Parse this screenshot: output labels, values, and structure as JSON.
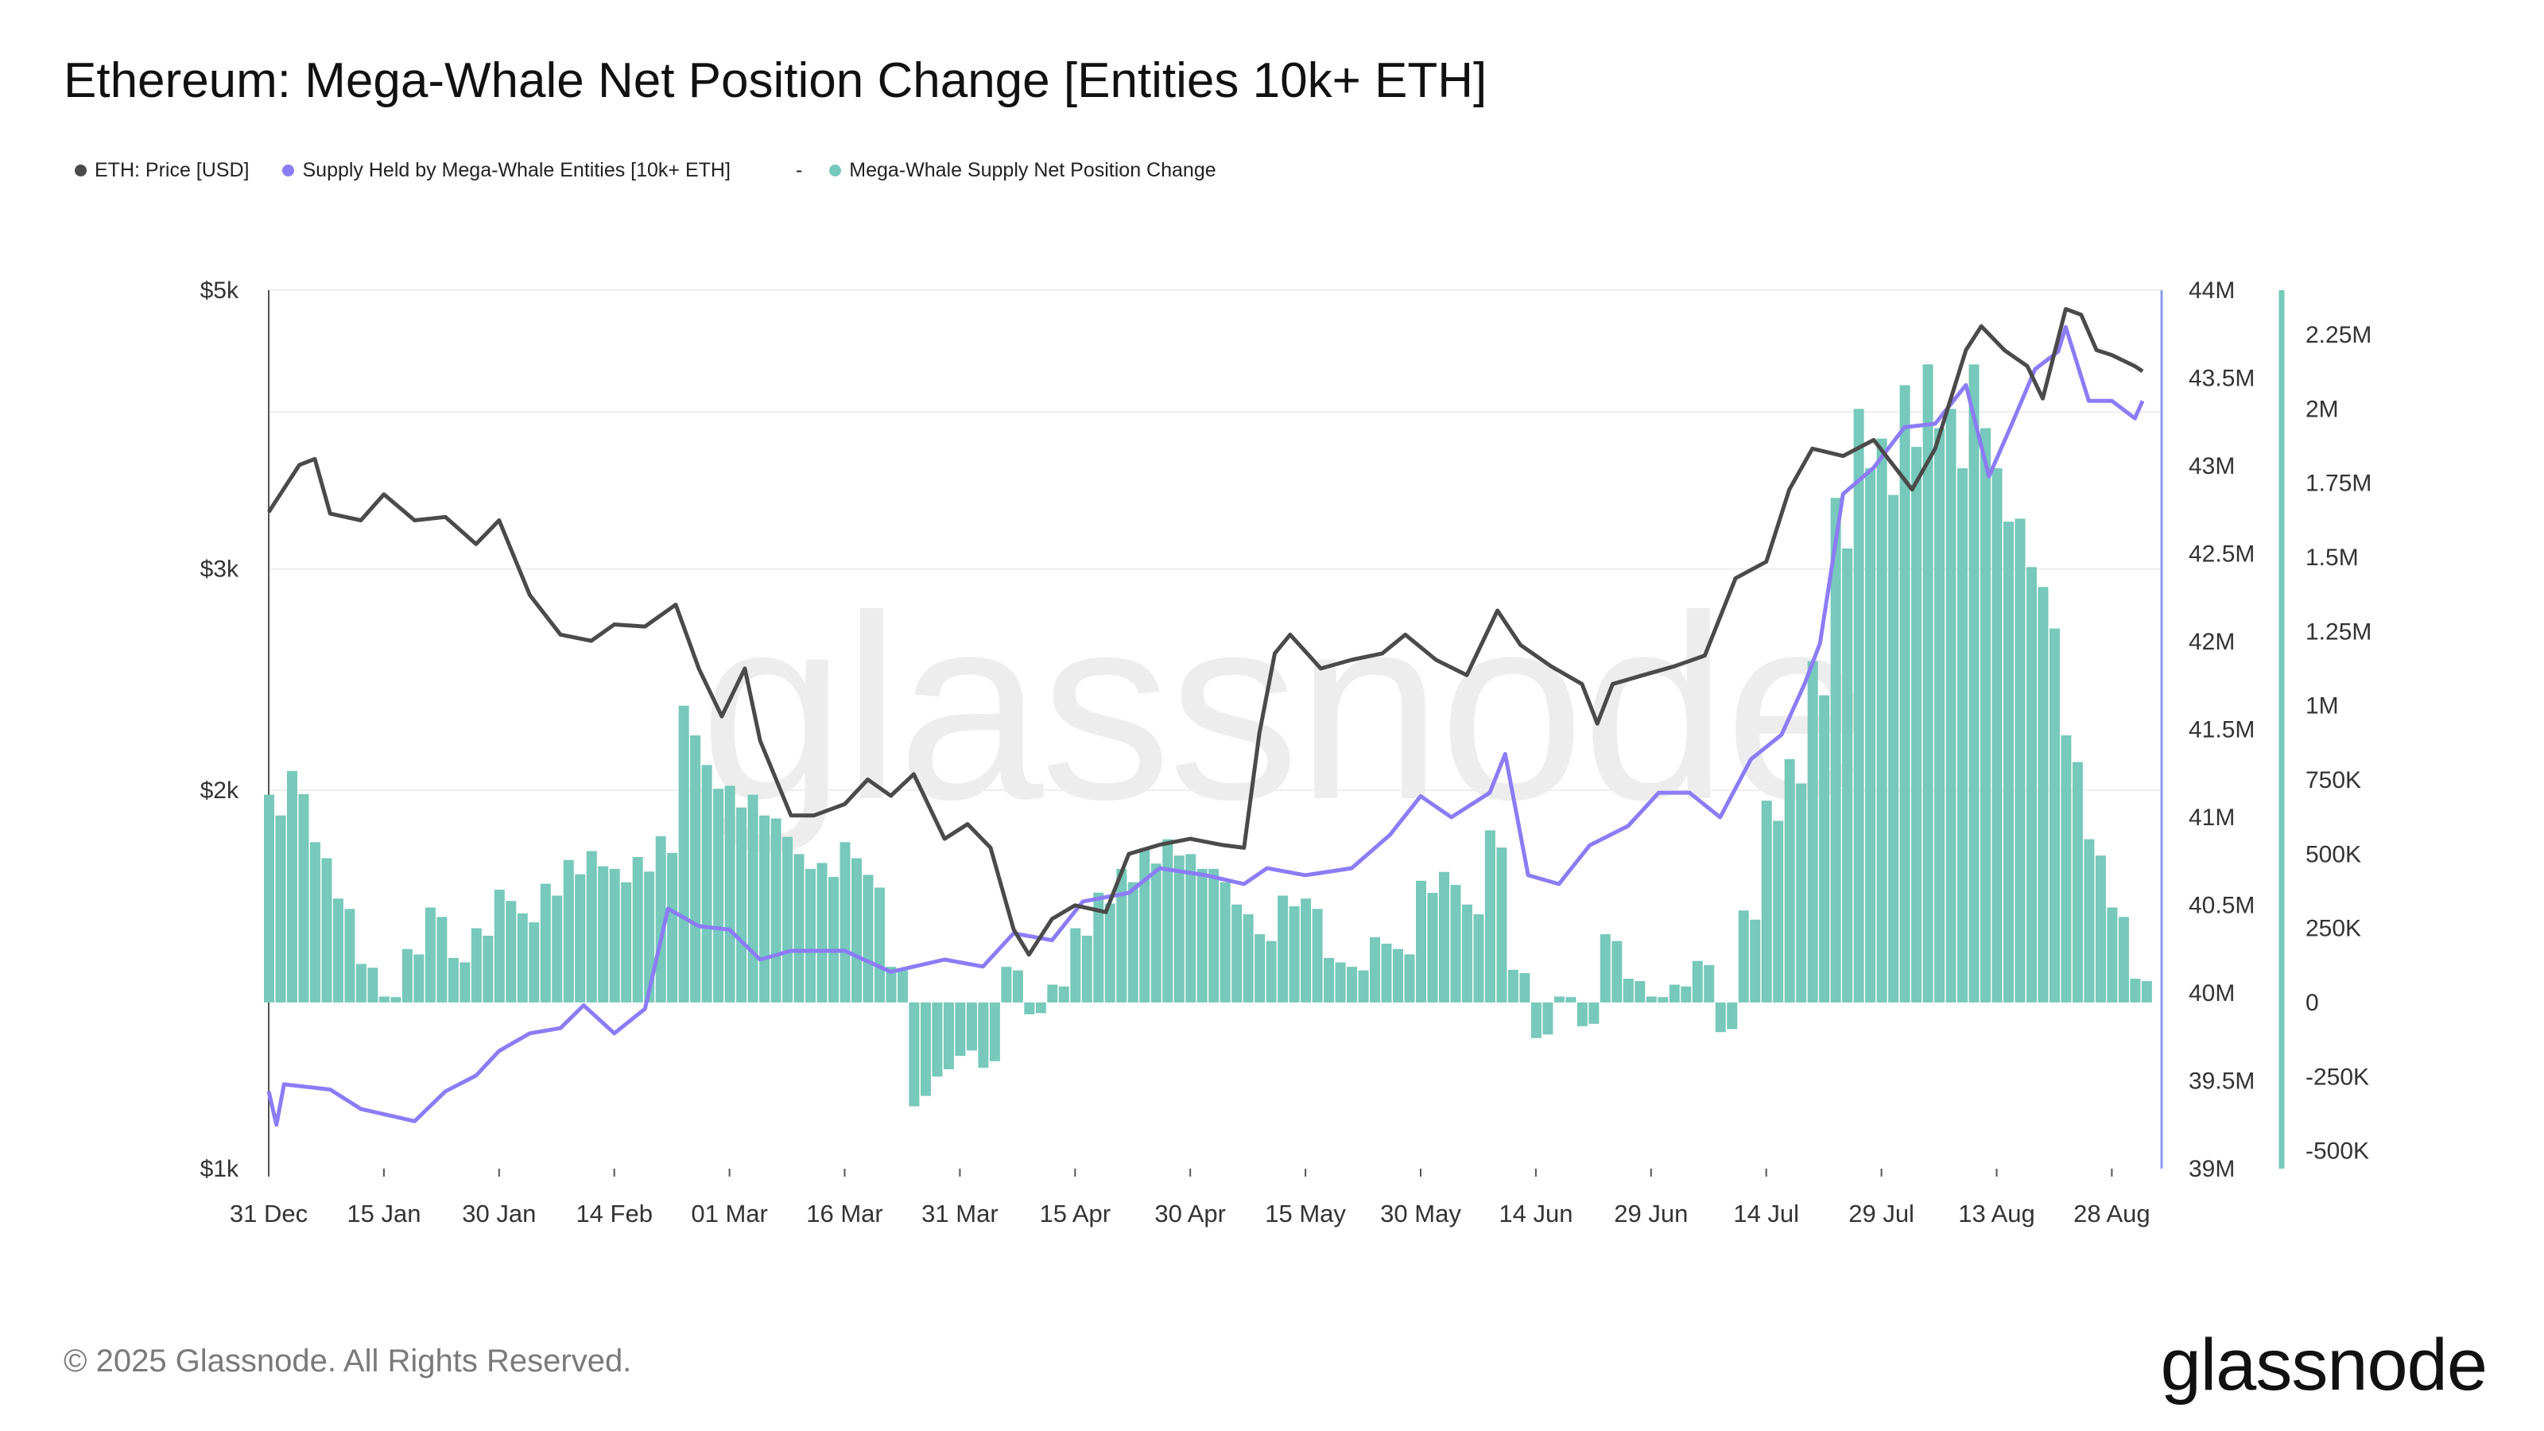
{
  "title": "Ethereum: Mega-Whale Net Position Change [Entities 10k+ ETH]",
  "legend": [
    {
      "label": "ETH: Price [USD]",
      "color": "#4a4a4a"
    },
    {
      "label": "Supply Held by Mega-Whale Entities [10k+ ETH]",
      "color": "#8b7cf6"
    },
    {
      "label": "Mega-Whale Supply Net Position Change",
      "color": "#76c9bb"
    }
  ],
  "legend_separator": "-",
  "footer": {
    "copyright": "© 2025 Glassnode. All Rights Reserved.",
    "logo": "glassnode"
  },
  "watermark": "glassnode",
  "chart_data": {
    "type": "line+bar",
    "title": "Ethereum: Mega-Whale Net Position Change [Entities 10k+ ETH]",
    "x_ticks": [
      "31 Dec",
      "15 Jan",
      "30 Jan",
      "14 Feb",
      "01 Mar",
      "16 Mar",
      "31 Mar",
      "15 Apr",
      "30 Apr",
      "15 May",
      "30 May",
      "14 Jun",
      "29 Jun",
      "14 Jul",
      "29 Jul",
      "13 Aug",
      "28 Aug"
    ],
    "y_left": {
      "scale": "log",
      "range": [
        1000,
        5000
      ],
      "ticks": [
        {
          "v": 5000,
          "label": "$5k"
        },
        {
          "v": 3000,
          "label": "$3k"
        },
        {
          "v": 2000,
          "label": "$2k"
        },
        {
          "v": 1000,
          "label": "$1k"
        }
      ],
      "grid": [
        5000,
        4000,
        3000,
        2000
      ]
    },
    "y_right_supply": {
      "scale": "linear",
      "range": [
        39000000,
        44000000
      ],
      "ticks": [
        "44M",
        "43.5M",
        "43M",
        "42.5M",
        "42M",
        "41.5M",
        "41M",
        "40.5M",
        "40M",
        "39.5M",
        "39M"
      ]
    },
    "y_right_change": {
      "scale": "linear",
      "range": [
        -560000,
        2400000
      ],
      "ticks": [
        {
          "v": 2250000,
          "label": "2.25M"
        },
        {
          "v": 2000000,
          "label": "2M"
        },
        {
          "v": 1750000,
          "label": "1.75M"
        },
        {
          "v": 1500000,
          "label": "1.5M"
        },
        {
          "v": 1250000,
          "label": "1.25M"
        },
        {
          "v": 1000000,
          "label": "1M"
        },
        {
          "v": 750000,
          "label": "750K"
        },
        {
          "v": 500000,
          "label": "500K"
        },
        {
          "v": 250000,
          "label": "250K"
        },
        {
          "v": 0,
          "label": "0"
        },
        {
          "v": -250000,
          "label": "-250K"
        },
        {
          "v": -500000,
          "label": "-500K"
        }
      ]
    },
    "series": [
      {
        "name": "ETH: Price [USD]",
        "type": "line",
        "axis": "left",
        "color": "#4a4a4a",
        "points": [
          [
            "Dec 31",
            3330
          ],
          [
            "Jan 4",
            3630
          ],
          [
            "Jan 6",
            3670
          ],
          [
            "Jan 8",
            3320
          ],
          [
            "Jan 12",
            3280
          ],
          [
            "Jan 15",
            3440
          ],
          [
            "Jan 19",
            3280
          ],
          [
            "Jan 23",
            3300
          ],
          [
            "Jan 27",
            3140
          ],
          [
            "Jan 30",
            3280
          ],
          [
            "Feb 3",
            2860
          ],
          [
            "Feb 7",
            2660
          ],
          [
            "Feb 11",
            2630
          ],
          [
            "Feb 14",
            2710
          ],
          [
            "Feb 18",
            2700
          ],
          [
            "Feb 22",
            2810
          ],
          [
            "Feb 25",
            2500
          ],
          [
            "Feb 28",
            2290
          ],
          [
            "Mar 3",
            2500
          ],
          [
            "Mar 5",
            2190
          ],
          [
            "Mar 9",
            1910
          ],
          [
            "Mar 12",
            1910
          ],
          [
            "Mar 16",
            1950
          ],
          [
            "Mar 19",
            2040
          ],
          [
            "Mar 22",
            1980
          ],
          [
            "Mar 25",
            2060
          ],
          [
            "Mar 29",
            1830
          ],
          [
            "Apr 1",
            1880
          ],
          [
            "Apr 4",
            1800
          ],
          [
            "Apr 7",
            1550
          ],
          [
            "Apr 9",
            1480
          ],
          [
            "Apr 12",
            1580
          ],
          [
            "Apr 15",
            1620
          ],
          [
            "Apr 19",
            1600
          ],
          [
            "Apr 22",
            1780
          ],
          [
            "Apr 26",
            1810
          ],
          [
            "Apr 30",
            1830
          ],
          [
            "May 4",
            1810
          ],
          [
            "May 7",
            1800
          ],
          [
            "May 9",
            2220
          ],
          [
            "May 11",
            2570
          ],
          [
            "May 13",
            2660
          ],
          [
            "May 17",
            2500
          ],
          [
            "May 21",
            2540
          ],
          [
            "May 25",
            2570
          ],
          [
            "May 28",
            2660
          ],
          [
            "Jun 1",
            2540
          ],
          [
            "Jun 5",
            2470
          ],
          [
            "Jun 9",
            2780
          ],
          [
            "Jun 12",
            2610
          ],
          [
            "Jun 16",
            2510
          ],
          [
            "Jun 20",
            2430
          ],
          [
            "Jun 22",
            2260
          ],
          [
            "Jun 24",
            2430
          ],
          [
            "Jun 28",
            2470
          ],
          [
            "Jul 2",
            2510
          ],
          [
            "Jul 6",
            2560
          ],
          [
            "Jul 10",
            2950
          ],
          [
            "Jul 14",
            3040
          ],
          [
            "Jul 17",
            3470
          ],
          [
            "Jul 20",
            3740
          ],
          [
            "Jul 24",
            3690
          ],
          [
            "Jul 28",
            3800
          ],
          [
            "Aug 2",
            3470
          ],
          [
            "Aug 5",
            3740
          ],
          [
            "Aug 9",
            4480
          ],
          [
            "Aug 11",
            4680
          ],
          [
            "Aug 14",
            4480
          ],
          [
            "Aug 17",
            4350
          ],
          [
            "Aug 19",
            4100
          ],
          [
            "Aug 22",
            4830
          ],
          [
            "Aug 24",
            4780
          ],
          [
            "Aug 26",
            4480
          ],
          [
            "Aug 28",
            4440
          ],
          [
            "Aug 31",
            4350
          ],
          [
            "Sep 1",
            4310
          ]
        ]
      },
      {
        "name": "Supply Held by Mega-Whale Entities [10k+ ETH]",
        "type": "line",
        "axis": "right_supply",
        "color": "#8b7cf6",
        "points": [
          [
            "Dec 31",
            39440000
          ],
          [
            "Jan 1",
            39250000
          ],
          [
            "Jan 2",
            39480000
          ],
          [
            "Jan 8",
            39450000
          ],
          [
            "Jan 12",
            39340000
          ],
          [
            "Jan 19",
            39270000
          ],
          [
            "Jan 23",
            39440000
          ],
          [
            "Jan 27",
            39530000
          ],
          [
            "Jan 30",
            39670000
          ],
          [
            "Feb 3",
            39770000
          ],
          [
            "Feb 7",
            39800000
          ],
          [
            "Feb 10",
            39930000
          ],
          [
            "Feb 14",
            39770000
          ],
          [
            "Feb 18",
            39910000
          ],
          [
            "Feb 21",
            40480000
          ],
          [
            "Feb 25",
            40380000
          ],
          [
            "Mar 1",
            40360000
          ],
          [
            "Mar 5",
            40190000
          ],
          [
            "Mar 9",
            40240000
          ],
          [
            "Mar 16",
            40240000
          ],
          [
            "Mar 22",
            40120000
          ],
          [
            "Mar 29",
            40190000
          ],
          [
            "Apr 3",
            40150000
          ],
          [
            "Apr 7",
            40340000
          ],
          [
            "Apr 12",
            40300000
          ],
          [
            "Apr 16",
            40520000
          ],
          [
            "Apr 22",
            40570000
          ],
          [
            "Apr 26",
            40710000
          ],
          [
            "May 2",
            40670000
          ],
          [
            "May 7",
            40620000
          ],
          [
            "May 10",
            40710000
          ],
          [
            "May 15",
            40670000
          ],
          [
            "May 21",
            40710000
          ],
          [
            "May 26",
            40900000
          ],
          [
            "May 30",
            41120000
          ],
          [
            "Jun 3",
            41000000
          ],
          [
            "Jun 8",
            41140000
          ],
          [
            "Jun 10",
            41360000
          ],
          [
            "Jun 13",
            40670000
          ],
          [
            "Jun 17",
            40620000
          ],
          [
            "Jun 21",
            40840000
          ],
          [
            "Jun 26",
            40950000
          ],
          [
            "Jun 30",
            41140000
          ],
          [
            "Jul 4",
            41140000
          ],
          [
            "Jul 8",
            41000000
          ],
          [
            "Jul 12",
            41330000
          ],
          [
            "Jul 16",
            41470000
          ],
          [
            "Jul 19",
            41760000
          ],
          [
            "Jul 21",
            41990000
          ],
          [
            "Jul 24",
            42840000
          ],
          [
            "Jul 28",
            42990000
          ],
          [
            "Aug 1",
            43220000
          ],
          [
            "Aug 5",
            43240000
          ],
          [
            "Aug 9",
            43460000
          ],
          [
            "Aug 12",
            42940000
          ],
          [
            "Aug 15",
            43240000
          ],
          [
            "Aug 18",
            43550000
          ],
          [
            "Aug 21",
            43650000
          ],
          [
            "Aug 22",
            43790000
          ],
          [
            "Aug 25",
            43370000
          ],
          [
            "Aug 28",
            43370000
          ],
          [
            "Aug 31",
            43270000
          ],
          [
            "Sep 1",
            43370000
          ]
        ]
      },
      {
        "name": "Mega-Whale Supply Net Position Change",
        "type": "bar",
        "axis": "right_change",
        "color": "#76c9bb",
        "points": [
          [
            "Dec 31",
            700000
          ],
          [
            "Jan 3",
            780000
          ],
          [
            "Jan 6",
            540000
          ],
          [
            "Jan 9",
            350000
          ],
          [
            "Jan 12",
            130000
          ],
          [
            "Jan 15",
            20000
          ],
          [
            "Jan 18",
            180000
          ],
          [
            "Jan 21",
            320000
          ],
          [
            "Jan 24",
            150000
          ],
          [
            "Jan 27",
            250000
          ],
          [
            "Jan 30",
            380000
          ],
          [
            "Feb 2",
            300000
          ],
          [
            "Feb 5",
            400000
          ],
          [
            "Feb 8",
            480000
          ],
          [
            "Feb 11",
            510000
          ],
          [
            "Feb 14",
            450000
          ],
          [
            "Feb 17",
            490000
          ],
          [
            "Feb 20",
            560000
          ],
          [
            "Feb 23",
            1000000
          ],
          [
            "Feb 26",
            800000
          ],
          [
            "Mar 1",
            730000
          ],
          [
            "Mar 4",
            700000
          ],
          [
            "Mar 7",
            620000
          ],
          [
            "Mar 10",
            500000
          ],
          [
            "Mar 13",
            470000
          ],
          [
            "Mar 16",
            540000
          ],
          [
            "Mar 19",
            430000
          ],
          [
            "Mar 22",
            120000
          ],
          [
            "Mar 25",
            -350000
          ],
          [
            "Mar 28",
            -250000
          ],
          [
            "Mar 31",
            -180000
          ],
          [
            "Apr 3",
            -220000
          ],
          [
            "Apr 6",
            120000
          ],
          [
            "Apr 9",
            -40000
          ],
          [
            "Apr 12",
            60000
          ],
          [
            "Apr 15",
            250000
          ],
          [
            "Apr 18",
            370000
          ],
          [
            "Apr 21",
            450000
          ],
          [
            "Apr 24",
            520000
          ],
          [
            "Apr 27",
            550000
          ],
          [
            "Apr 30",
            500000
          ],
          [
            "May 3",
            450000
          ],
          [
            "May 6",
            330000
          ],
          [
            "May 9",
            230000
          ],
          [
            "May 12",
            360000
          ],
          [
            "May 15",
            350000
          ],
          [
            "May 18",
            150000
          ],
          [
            "May 21",
            120000
          ],
          [
            "May 24",
            220000
          ],
          [
            "May 27",
            180000
          ],
          [
            "May 30",
            410000
          ],
          [
            "Jun 2",
            440000
          ],
          [
            "Jun 5",
            330000
          ],
          [
            "Jun 8",
            580000
          ],
          [
            "Jun 11",
            110000
          ],
          [
            "Jun 14",
            -120000
          ],
          [
            "Jun 17",
            20000
          ],
          [
            "Jun 20",
            -80000
          ],
          [
            "Jun 23",
            230000
          ],
          [
            "Jun 26",
            80000
          ],
          [
            "Jun 29",
            20000
          ],
          [
            "Jul 2",
            60000
          ],
          [
            "Jul 5",
            140000
          ],
          [
            "Jul 8",
            -100000
          ],
          [
            "Jul 11",
            310000
          ],
          [
            "Jul 14",
            680000
          ],
          [
            "Jul 17",
            820000
          ],
          [
            "Jul 20",
            1150000
          ],
          [
            "Jul 23",
            1700000
          ],
          [
            "Jul 26",
            2000000
          ],
          [
            "Jul 29",
            1900000
          ],
          [
            "Aug 1",
            2080000
          ],
          [
            "Aug 4",
            2150000
          ],
          [
            "Aug 7",
            2000000
          ],
          [
            "Aug 10",
            2150000
          ],
          [
            "Aug 13",
            1800000
          ],
          [
            "Aug 16",
            1630000
          ],
          [
            "Aug 19",
            1400000
          ],
          [
            "Aug 22",
            900000
          ],
          [
            "Aug 25",
            550000
          ],
          [
            "Aug 28",
            320000
          ],
          [
            "Aug 31",
            80000
          ]
        ]
      }
    ],
    "grid": "horizontal",
    "legend_position": "top-left"
  }
}
